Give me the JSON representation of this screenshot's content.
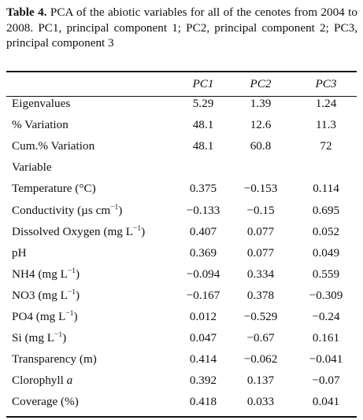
{
  "caption": {
    "label": "Table 4.",
    "text": "PCA of the abiotic variables for all of the cenotes from 2004 to 2008. PC1, principal component 1; PC2, principal component 2; PC3, principal component 3"
  },
  "table": {
    "columns": [
      "PC1",
      "PC2",
      "PC3"
    ],
    "rows": [
      {
        "label": "Eigenvalues",
        "sup": "",
        "after": "",
        "values": [
          "5.29",
          "1.39",
          "1.24"
        ]
      },
      {
        "label": "% Variation",
        "sup": "",
        "after": "",
        "values": [
          "48.1",
          "12.6",
          "11.3"
        ]
      },
      {
        "label": "Cum.% Variation",
        "sup": "",
        "after": "",
        "values": [
          "48.1",
          "60.8",
          "72"
        ]
      },
      {
        "label": "Variable",
        "sup": "",
        "after": "",
        "values": [
          "",
          "",
          ""
        ]
      },
      {
        "label": "Temperature (°C)",
        "sup": "",
        "after": "",
        "values": [
          "0.375",
          "−0.153",
          "0.114"
        ]
      },
      {
        "label": "Conductivity (µs cm",
        "sup": "−1",
        "after": ")",
        "values": [
          "−0.133",
          "−0.15",
          "0.695"
        ]
      },
      {
        "label": "Dissolved Oxygen (mg L",
        "sup": "−1",
        "after": ")",
        "values": [
          "0.407",
          "0.077",
          "0.052"
        ]
      },
      {
        "label": "pH",
        "sup": "",
        "after": "",
        "values": [
          "0.369",
          "0.077",
          "0.049"
        ]
      },
      {
        "label": "NH4 (mg L",
        "sup": "−1",
        "after": ")",
        "values": [
          "−0.094",
          "0.334",
          "0.559"
        ]
      },
      {
        "label": "NO3 (mg L",
        "sup": "−1",
        "after": ")",
        "values": [
          "−0.167",
          "0.378",
          "−0.309"
        ]
      },
      {
        "label": "PO4 (mg L",
        "sup": "−1",
        "after": ")",
        "values": [
          "0.012",
          "−0.529",
          "−0.24"
        ]
      },
      {
        "label": "Si (mg L",
        "sup": "−1",
        "after": ")",
        "values": [
          "0.047",
          "−0.67",
          "0.161"
        ]
      },
      {
        "label": "Transparency (m)",
        "sup": "",
        "after": "",
        "values": [
          "0.414",
          "−0.062",
          "−0.041"
        ]
      },
      {
        "label": "Clorophyll ",
        "sup": "",
        "after": "",
        "italic": "a",
        "values": [
          "0.392",
          "0.137",
          "−0.07"
        ]
      },
      {
        "label": "Coverage (%)",
        "sup": "",
        "after": "",
        "values": [
          "0.418",
          "0.033",
          "0.041"
        ]
      }
    ]
  }
}
